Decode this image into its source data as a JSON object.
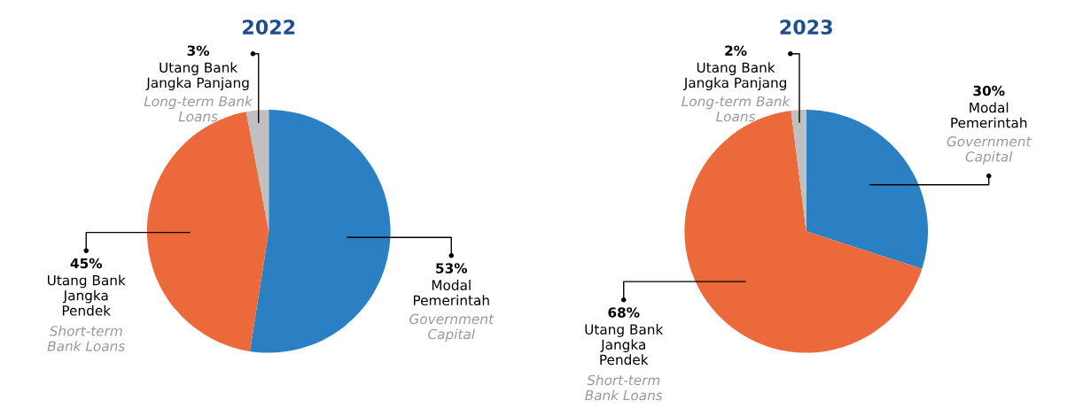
{
  "chart_data": [
    {
      "type": "pie",
      "title": "2022",
      "categories": [
        "Modal\nPemerintah",
        "Utang Bank\nJangka\nPendek",
        "Utang Bank\nJangka Panjang"
      ],
      "values": [
        53,
        45,
        3
      ],
      "value_labels": [
        "53%",
        "45%",
        "3%"
      ],
      "colors": [
        "#2a80c2",
        "#ec693b",
        "#c0c0c0"
      ],
      "annotations": [
        "Government\nCapital",
        "Short-term\nBank Loans",
        "Long-term Bank\nLoans"
      ]
    },
    {
      "type": "pie",
      "title": "2023",
      "categories": [
        "Modal\nPemerintah",
        "Utang Bank\nJangka\nPendek",
        "Utang Bank\nJangka Panjang"
      ],
      "values": [
        30,
        68,
        2
      ],
      "value_labels": [
        "30%",
        "68%",
        "2%"
      ],
      "colors": [
        "#2a80c2",
        "#ec693b",
        "#c0c0c0"
      ],
      "annotations": [
        "Government\nCapital",
        "Short-term\nBank Loans",
        "Long-term Bank\nLoans"
      ]
    }
  ]
}
